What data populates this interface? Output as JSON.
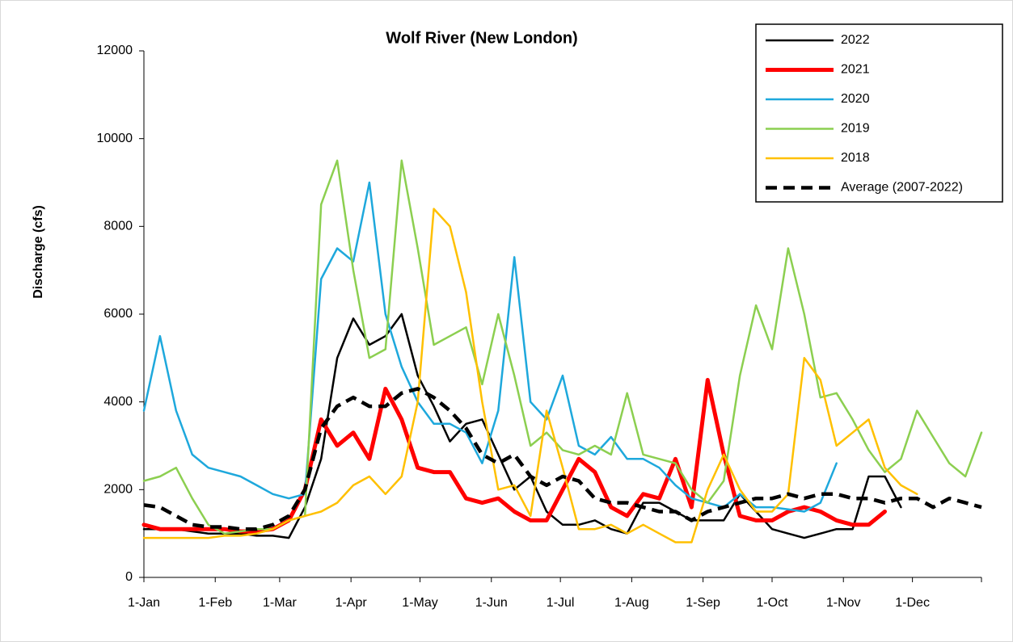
{
  "chart_data": {
    "type": "line",
    "title": "Wolf River (New London)",
    "y_label": "Discharge (cfs)",
    "xlim": [
      0,
      364
    ],
    "xticks": [
      {
        "value": 0,
        "label": "1-Jan"
      },
      {
        "value": 31,
        "label": "1-Feb"
      },
      {
        "value": 59,
        "label": "1-Mar"
      },
      {
        "value": 90,
        "label": "1-Apr"
      },
      {
        "value": 120,
        "label": "1-May"
      },
      {
        "value": 151,
        "label": "1-Jun"
      },
      {
        "value": 181,
        "label": "1-Jul"
      },
      {
        "value": 212,
        "label": "1-Aug"
      },
      {
        "value": 243,
        "label": "1-Sep"
      },
      {
        "value": 273,
        "label": "1-Oct"
      },
      {
        "value": 304,
        "label": "1-Nov"
      },
      {
        "value": 334,
        "label": "1-Dec"
      }
    ],
    "ylim": [
      0,
      12000
    ],
    "yticks": [
      0,
      2000,
      4000,
      6000,
      8000,
      10000,
      12000
    ],
    "legend": "top-right",
    "x": [
      0,
      7,
      14,
      21,
      28,
      35,
      42,
      49,
      56,
      63,
      70,
      77,
      84,
      91,
      98,
      105,
      112,
      119,
      126,
      133,
      140,
      147,
      154,
      161,
      168,
      175,
      182,
      189,
      196,
      203,
      210,
      217,
      224,
      231,
      238,
      245,
      252,
      259,
      266,
      273,
      280,
      287,
      294,
      301,
      308,
      315,
      322,
      329,
      336,
      343,
      350,
      357,
      364
    ],
    "series": [
      {
        "name": "2022",
        "color": "#000000",
        "width": 2.5,
        "dashed": false,
        "values": [
          1100,
          1100,
          1100,
          1050,
          1000,
          1000,
          1000,
          950,
          950,
          900,
          1600,
          2700,
          5000,
          5900,
          5300,
          5500,
          6000,
          4600,
          3900,
          3100,
          3500,
          3600,
          2800,
          2000,
          2300,
          1500,
          1200,
          1200,
          1300,
          1100,
          1000,
          1700,
          1700,
          1500,
          1300,
          1300,
          1300,
          1900,
          1500,
          1100,
          1000,
          900,
          1000,
          1100,
          1100,
          2300,
          2300,
          1600,
          null,
          null,
          null,
          null,
          null
        ]
      },
      {
        "name": "2021",
        "color": "#ff0000",
        "width": 5,
        "dashed": false,
        "values": [
          1200,
          1100,
          1100,
          1100,
          1100,
          1100,
          1050,
          1050,
          1100,
          1300,
          2000,
          3600,
          3000,
          3300,
          2700,
          4300,
          3600,
          2500,
          2400,
          2400,
          1800,
          1700,
          1800,
          1500,
          1300,
          1300,
          2000,
          2700,
          2400,
          1600,
          1400,
          1900,
          1800,
          2700,
          1600,
          4500,
          2800,
          1400,
          1300,
          1300,
          1500,
          1600,
          1500,
          1300,
          1200,
          1200,
          1500,
          null,
          null,
          null,
          null,
          null,
          null
        ]
      },
      {
        "name": "2020",
        "color": "#1ea8dc",
        "width": 2.5,
        "dashed": false,
        "values": [
          3800,
          5500,
          3800,
          2800,
          2500,
          2400,
          2300,
          2100,
          1900,
          1800,
          1900,
          6800,
          7500,
          7200,
          9000,
          6000,
          4800,
          4000,
          3500,
          3500,
          3300,
          2600,
          3800,
          7300,
          4000,
          3600,
          4600,
          3000,
          2800,
          3200,
          2700,
          2700,
          2500,
          2100,
          1800,
          1700,
          1600,
          1900,
          1600,
          1600,
          1550,
          1500,
          1700,
          2600,
          null,
          null,
          null,
          null,
          null,
          null,
          null,
          null,
          null
        ]
      },
      {
        "name": "2019",
        "color": "#8ccf50",
        "width": 2.5,
        "dashed": false,
        "values": [
          2200,
          2300,
          2500,
          1800,
          1200,
          1000,
          1050,
          1100,
          1100,
          1300,
          1400,
          8500,
          9500,
          7000,
          5000,
          5200,
          9500,
          7500,
          5300,
          5500,
          5700,
          4400,
          6000,
          4600,
          3000,
          3300,
          2900,
          2800,
          3000,
          2800,
          4200,
          2800,
          2700,
          2600,
          2000,
          1700,
          2200,
          4600,
          6200,
          5200,
          7500,
          6000,
          4100,
          4200,
          3600,
          2900,
          2400,
          2700,
          3800,
          3200,
          2600,
          2300,
          3300
        ]
      },
      {
        "name": "2018",
        "color": "#ffc000",
        "width": 2.5,
        "dashed": false,
        "values": [
          900,
          900,
          900,
          900,
          900,
          950,
          950,
          1000,
          1100,
          1300,
          1400,
          1500,
          1700,
          2100,
          2300,
          1900,
          2300,
          4000,
          8400,
          8000,
          6500,
          4000,
          2000,
          2100,
          1400,
          3800,
          2500,
          1100,
          1100,
          1200,
          1000,
          1200,
          1000,
          800,
          800,
          2000,
          2800,
          2000,
          1500,
          1500,
          1900,
          5000,
          4500,
          3000,
          3300,
          3600,
          2500,
          2100,
          1900,
          null,
          null,
          null,
          null
        ]
      },
      {
        "name": "Average (2007-2022)",
        "color": "#000000",
        "width": 4.5,
        "dashed": true,
        "values": [
          1650,
          1600,
          1400,
          1200,
          1150,
          1150,
          1100,
          1100,
          1200,
          1400,
          2000,
          3400,
          3900,
          4100,
          3900,
          3900,
          4200,
          4300,
          4100,
          3800,
          3400,
          2800,
          2600,
          2800,
          2300,
          2100,
          2300,
          2200,
          1800,
          1700,
          1700,
          1600,
          1500,
          1500,
          1300,
          1500,
          1600,
          1700,
          1800,
          1800,
          1900,
          1800,
          1900,
          1900,
          1800,
          1800,
          1700,
          1800,
          1800,
          1600,
          1800,
          1700,
          1600
        ]
      }
    ]
  }
}
